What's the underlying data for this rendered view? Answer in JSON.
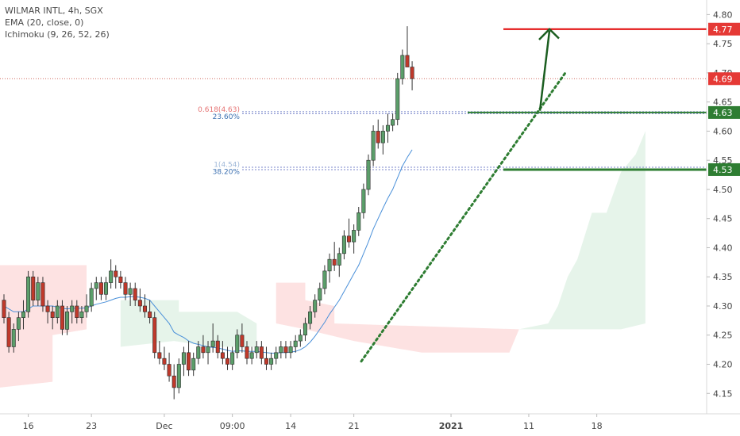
{
  "header": {
    "symbol_line": "WILMAR INTL, 4h, SGX",
    "indicator_1": "EMA (20, close, 0)",
    "indicator_2": "Ichimoku (9, 26, 52, 26)"
  },
  "colors": {
    "up": "#5b9e6a",
    "down": "#c0392b",
    "ema": "#4a90d9",
    "cloud_bull": "#e6f4ea",
    "cloud_bear": "#fde2e2",
    "resistance": "#e00000",
    "support": "#2e7d32",
    "trendline": "#2e7d32",
    "arrow": "#1b5e20",
    "current_price_line": "#c0392b"
  },
  "chart_data": {
    "type": "candlestick",
    "title": "WILMAR INTL, 4h, SGX",
    "y_axis": {
      "ylim": [
        4.115,
        4.825
      ],
      "ticks": [
        "4.80",
        "4.75",
        "4.70",
        "4.65",
        "4.60",
        "4.55",
        "4.50",
        "4.45",
        "4.40",
        "4.35",
        "4.30",
        "4.25",
        "4.20",
        "4.15"
      ],
      "tick_values": [
        4.8,
        4.75,
        4.7,
        4.65,
        4.6,
        4.55,
        4.5,
        4.45,
        4.4,
        4.35,
        4.3,
        4.25,
        4.2,
        4.15
      ]
    },
    "x_axis": {
      "ticks": [
        "16",
        "23",
        "Dec",
        "09:00",
        "14",
        "21",
        "2021",
        "11",
        "18"
      ],
      "tick_bars": [
        5,
        18,
        33,
        47,
        59,
        72,
        92,
        108,
        122
      ],
      "total_bars": 130,
      "bold_tick": "2021"
    },
    "candles": [
      [
        4.31,
        4.32,
        4.27,
        4.28
      ],
      [
        4.28,
        4.29,
        4.22,
        4.23
      ],
      [
        4.23,
        4.27,
        4.22,
        4.26
      ],
      [
        4.26,
        4.29,
        4.24,
        4.28
      ],
      [
        4.28,
        4.31,
        4.26,
        4.29
      ],
      [
        4.29,
        4.36,
        4.28,
        4.35
      ],
      [
        4.35,
        4.36,
        4.3,
        4.31
      ],
      [
        4.31,
        4.35,
        4.3,
        4.34
      ],
      [
        4.34,
        4.35,
        4.29,
        4.3
      ],
      [
        4.3,
        4.31,
        4.27,
        4.29
      ],
      [
        4.29,
        4.3,
        4.26,
        4.28
      ],
      [
        4.28,
        4.31,
        4.27,
        4.3
      ],
      [
        4.3,
        4.31,
        4.25,
        4.26
      ],
      [
        4.26,
        4.3,
        4.25,
        4.29
      ],
      [
        4.29,
        4.31,
        4.27,
        4.3
      ],
      [
        4.3,
        4.31,
        4.27,
        4.28
      ],
      [
        4.28,
        4.3,
        4.27,
        4.29
      ],
      [
        4.29,
        4.32,
        4.28,
        4.3
      ],
      [
        4.3,
        4.34,
        4.29,
        4.33
      ],
      [
        4.33,
        4.35,
        4.31,
        4.34
      ],
      [
        4.34,
        4.35,
        4.31,
        4.32
      ],
      [
        4.32,
        4.35,
        4.31,
        4.34
      ],
      [
        4.34,
        4.38,
        4.33,
        4.36
      ],
      [
        4.36,
        4.37,
        4.33,
        4.35
      ],
      [
        4.35,
        4.36,
        4.33,
        4.34
      ],
      [
        4.34,
        4.35,
        4.31,
        4.32
      ],
      [
        4.32,
        4.34,
        4.3,
        4.33
      ],
      [
        4.33,
        4.34,
        4.3,
        4.31
      ],
      [
        4.31,
        4.33,
        4.29,
        4.3
      ],
      [
        4.3,
        4.32,
        4.28,
        4.29
      ],
      [
        4.29,
        4.31,
        4.27,
        4.28
      ],
      [
        4.28,
        4.29,
        4.21,
        4.22
      ],
      [
        4.22,
        4.24,
        4.2,
        4.21
      ],
      [
        4.21,
        4.23,
        4.19,
        4.2
      ],
      [
        4.2,
        4.22,
        4.17,
        4.18
      ],
      [
        4.18,
        4.2,
        4.14,
        4.16
      ],
      [
        4.16,
        4.21,
        4.15,
        4.2
      ],
      [
        4.2,
        4.23,
        4.18,
        4.22
      ],
      [
        4.22,
        4.24,
        4.18,
        4.19
      ],
      [
        4.19,
        4.22,
        4.18,
        4.21
      ],
      [
        4.21,
        4.24,
        4.2,
        4.23
      ],
      [
        4.23,
        4.25,
        4.21,
        4.22
      ],
      [
        4.22,
        4.24,
        4.2,
        4.23
      ],
      [
        4.23,
        4.27,
        4.22,
        4.24
      ],
      [
        4.24,
        4.25,
        4.21,
        4.22
      ],
      [
        4.22,
        4.24,
        4.2,
        4.21
      ],
      [
        4.21,
        4.23,
        4.19,
        4.2
      ],
      [
        4.2,
        4.23,
        4.19,
        4.22
      ],
      [
        4.22,
        4.26,
        4.21,
        4.25
      ],
      [
        4.25,
        4.27,
        4.22,
        4.23
      ],
      [
        4.23,
        4.24,
        4.2,
        4.21
      ],
      [
        4.21,
        4.23,
        4.2,
        4.22
      ],
      [
        4.22,
        4.24,
        4.21,
        4.23
      ],
      [
        4.23,
        4.24,
        4.2,
        4.21
      ],
      [
        4.21,
        4.23,
        4.19,
        4.2
      ],
      [
        4.2,
        4.22,
        4.19,
        4.21
      ],
      [
        4.21,
        4.23,
        4.2,
        4.22
      ],
      [
        4.22,
        4.24,
        4.21,
        4.23
      ],
      [
        4.23,
        4.24,
        4.21,
        4.22
      ],
      [
        4.22,
        4.24,
        4.21,
        4.23
      ],
      [
        4.23,
        4.25,
        4.22,
        4.24
      ],
      [
        4.24,
        4.26,
        4.23,
        4.25
      ],
      [
        4.25,
        4.28,
        4.24,
        4.27
      ],
      [
        4.27,
        4.3,
        4.26,
        4.29
      ],
      [
        4.29,
        4.32,
        4.28,
        4.31
      ],
      [
        4.31,
        4.34,
        4.3,
        4.33
      ],
      [
        4.33,
        4.37,
        4.32,
        4.36
      ],
      [
        4.36,
        4.39,
        4.34,
        4.38
      ],
      [
        4.38,
        4.41,
        4.36,
        4.37
      ],
      [
        4.37,
        4.4,
        4.35,
        4.39
      ],
      [
        4.39,
        4.43,
        4.38,
        4.42
      ],
      [
        4.42,
        4.45,
        4.4,
        4.41
      ],
      [
        4.41,
        4.44,
        4.39,
        4.43
      ],
      [
        4.43,
        4.47,
        4.42,
        4.46
      ],
      [
        4.46,
        4.51,
        4.45,
        4.5
      ],
      [
        4.5,
        4.56,
        4.49,
        4.55
      ],
      [
        4.55,
        4.61,
        4.54,
        4.6
      ],
      [
        4.6,
        4.62,
        4.57,
        4.58
      ],
      [
        4.58,
        4.61,
        4.56,
        4.6
      ],
      [
        4.6,
        4.63,
        4.58,
        4.61
      ],
      [
        4.61,
        4.63,
        4.6,
        4.62
      ],
      [
        4.62,
        4.7,
        4.61,
        4.69
      ],
      [
        4.69,
        4.74,
        4.68,
        4.73
      ],
      [
        4.73,
        4.78,
        4.71,
        4.71
      ],
      [
        4.71,
        4.72,
        4.67,
        4.69
      ]
    ],
    "ema": [
      4.3,
      4.295,
      4.29,
      4.29,
      4.29,
      4.295,
      4.3,
      4.3,
      4.3,
      4.3,
      4.3,
      4.298,
      4.296,
      4.295,
      4.296,
      4.296,
      4.296,
      4.297,
      4.3,
      4.303,
      4.305,
      4.307,
      4.31,
      4.313,
      4.315,
      4.315,
      4.316,
      4.316,
      4.315,
      4.313,
      4.31,
      4.3,
      4.29,
      4.28,
      4.27,
      4.255,
      4.25,
      4.246,
      4.24,
      4.236,
      4.234,
      4.232,
      4.23,
      4.229,
      4.228,
      4.226,
      4.224,
      4.222,
      4.223,
      4.223,
      4.222,
      4.222,
      4.222,
      4.221,
      4.22,
      4.219,
      4.219,
      4.22,
      4.22,
      4.221,
      4.222,
      4.225,
      4.23,
      4.238,
      4.248,
      4.26,
      4.272,
      4.286,
      4.298,
      4.31,
      4.325,
      4.34,
      4.355,
      4.37,
      4.39,
      4.41,
      4.432,
      4.45,
      4.468,
      4.485,
      4.5,
      4.52,
      4.54,
      4.555,
      4.568
    ],
    "annotations": {
      "resistance_label": "4.77",
      "resistance_value": 4.775,
      "current_label": "4.69",
      "current_value": 4.69,
      "support1_label": "4.63",
      "support1_value": 4.632,
      "support2_label": "4.53",
      "support2_value": 4.534,
      "fib1_text": "0.618(4.63)",
      "fib1_pct": "23.60%",
      "fib1_value": 4.632,
      "fib2_text": "1(4.54)",
      "fib2_pct": "38.20%",
      "fib2_value": 4.536
    }
  }
}
